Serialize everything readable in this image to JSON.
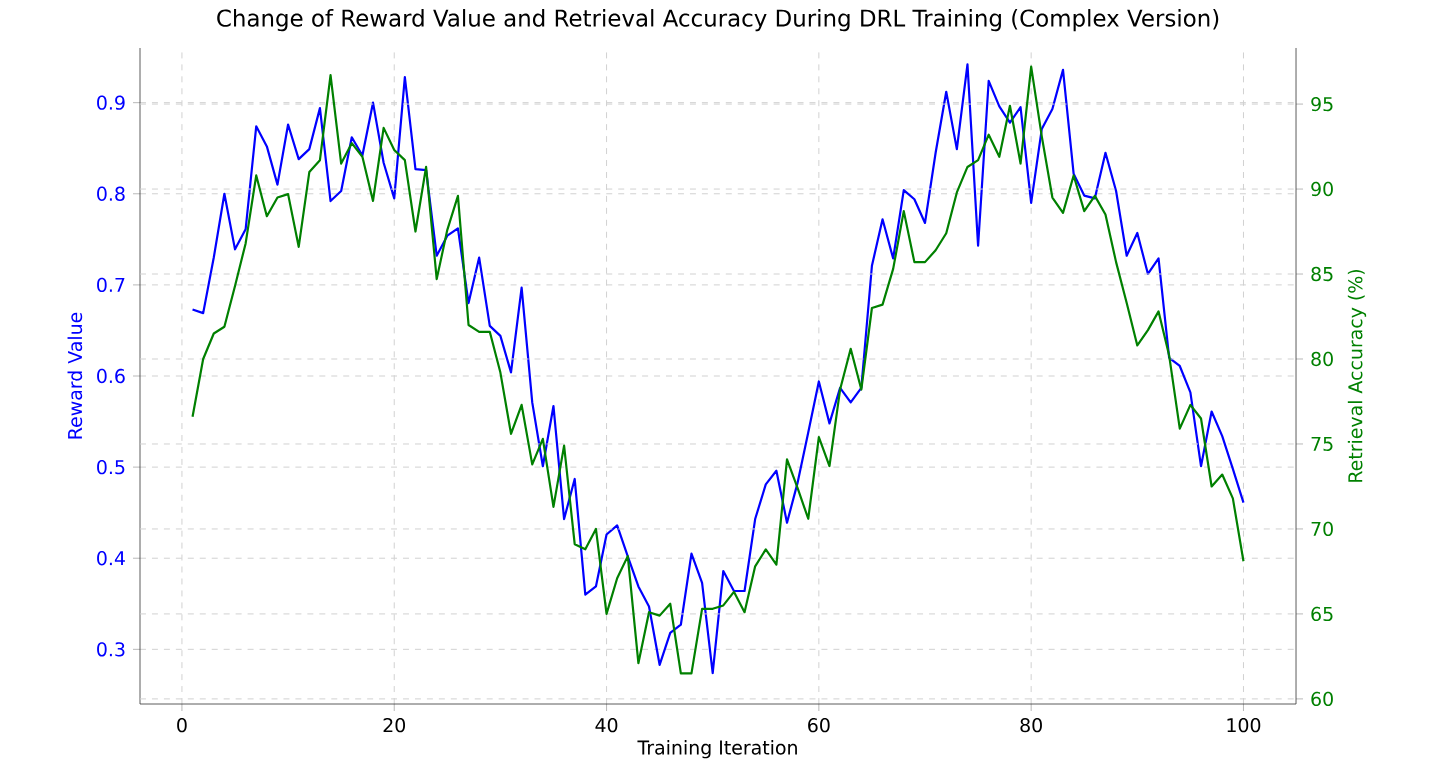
{
  "chart_data": {
    "type": "line",
    "title": "Change of Reward Value and Retrieval Accuracy During DRL Training (Complex Version)",
    "xlabel": "Training Iteration",
    "ylabel": "Reward Value",
    "y2label": "Retrieval Accuracy (%)",
    "x": [
      1,
      2,
      3,
      4,
      5,
      6,
      7,
      8,
      9,
      10,
      11,
      12,
      13,
      14,
      15,
      16,
      17,
      18,
      19,
      20,
      21,
      22,
      23,
      24,
      25,
      26,
      27,
      28,
      29,
      30,
      31,
      32,
      33,
      34,
      35,
      36,
      37,
      38,
      39,
      40,
      41,
      42,
      43,
      44,
      45,
      46,
      47,
      48,
      49,
      50,
      51,
      52,
      53,
      54,
      55,
      56,
      57,
      58,
      59,
      60,
      61,
      62,
      63,
      64,
      65,
      66,
      67,
      68,
      69,
      70,
      71,
      72,
      73,
      74,
      75,
      76,
      77,
      78,
      79,
      80,
      81,
      82,
      83,
      84,
      85,
      86,
      87,
      88,
      89,
      90,
      91,
      92,
      93,
      94,
      95,
      96,
      97,
      98,
      99,
      100
    ],
    "series": [
      {
        "color": "#0000ff",
        "values": [
          0.673,
          0.669,
          0.73,
          0.8,
          0.739,
          0.761,
          0.874,
          0.852,
          0.81,
          0.876,
          0.838,
          0.849,
          0.894,
          0.792,
          0.803,
          0.862,
          0.842,
          0.9,
          0.834,
          0.795,
          0.928,
          0.827,
          0.826,
          0.732,
          0.754,
          0.762,
          0.68,
          0.73,
          0.655,
          0.644,
          0.604,
          0.697,
          0.571,
          0.501,
          0.567,
          0.443,
          0.487,
          0.36,
          0.369,
          0.426,
          0.436,
          0.402,
          0.369,
          0.347,
          0.283,
          0.318,
          0.327,
          0.405,
          0.373,
          0.274,
          0.386,
          0.364,
          0.364,
          0.443,
          0.481,
          0.496,
          0.439,
          0.483,
          0.538,
          0.594,
          0.548,
          0.587,
          0.571,
          0.587,
          0.721,
          0.772,
          0.729,
          0.804,
          0.794,
          0.768,
          0.845,
          0.912,
          0.849,
          0.942,
          0.743,
          0.924,
          0.896,
          0.878,
          0.895,
          0.79,
          0.871,
          0.893,
          0.936,
          0.822,
          0.798,
          0.795,
          0.845,
          0.803,
          0.732,
          0.757,
          0.712,
          0.729,
          0.62,
          0.611,
          0.582,
          0.501,
          0.561,
          0.534,
          0.498,
          0.461
        ]
      },
      {
        "color": "#008000",
        "axis": "y2",
        "values": [
          76.6,
          80.0,
          81.5,
          81.9,
          84.3,
          86.8,
          90.8,
          88.4,
          89.5,
          89.7,
          86.6,
          91.0,
          91.7,
          96.7,
          91.5,
          92.7,
          91.9,
          89.3,
          93.6,
          92.3,
          91.7,
          87.5,
          91.3,
          84.7,
          87.6,
          89.6,
          82.0,
          81.6,
          81.6,
          79.2,
          75.6,
          77.3,
          73.8,
          75.3,
          71.3,
          74.9,
          69.1,
          68.8,
          70.0,
          65.0,
          67.1,
          68.4,
          62.1,
          65.1,
          64.9,
          65.6,
          61.5,
          61.5,
          65.3,
          65.3,
          65.5,
          66.3,
          65.1,
          67.8,
          68.8,
          67.9,
          74.1,
          72.4,
          70.6,
          75.4,
          73.7,
          78.2,
          80.6,
          78.2,
          83.0,
          83.2,
          85.3,
          88.7,
          85.7,
          85.7,
          86.4,
          87.4,
          89.8,
          91.3,
          91.7,
          93.2,
          91.9,
          94.9,
          91.5,
          97.2,
          93.1,
          89.5,
          88.6,
          90.8,
          88.7,
          89.6,
          88.5,
          85.7,
          83.3,
          80.8,
          81.7,
          82.8,
          80.2,
          75.9,
          77.3,
          76.5,
          72.5,
          73.2,
          71.8,
          68.1
        ]
      }
    ],
    "xlim": [
      -3.95,
      104.95
    ],
    "xticks": [
      0,
      20,
      40,
      60,
      80,
      100
    ],
    "ylim": [
      0.24,
      0.96
    ],
    "yticks": [
      0.3,
      0.4,
      0.5,
      0.6,
      0.7,
      0.8,
      0.9
    ],
    "y2lim": [
      59.7,
      98.3
    ],
    "y2ticks": [
      60,
      65,
      70,
      75,
      80,
      85,
      90,
      95
    ],
    "grid": true
  }
}
